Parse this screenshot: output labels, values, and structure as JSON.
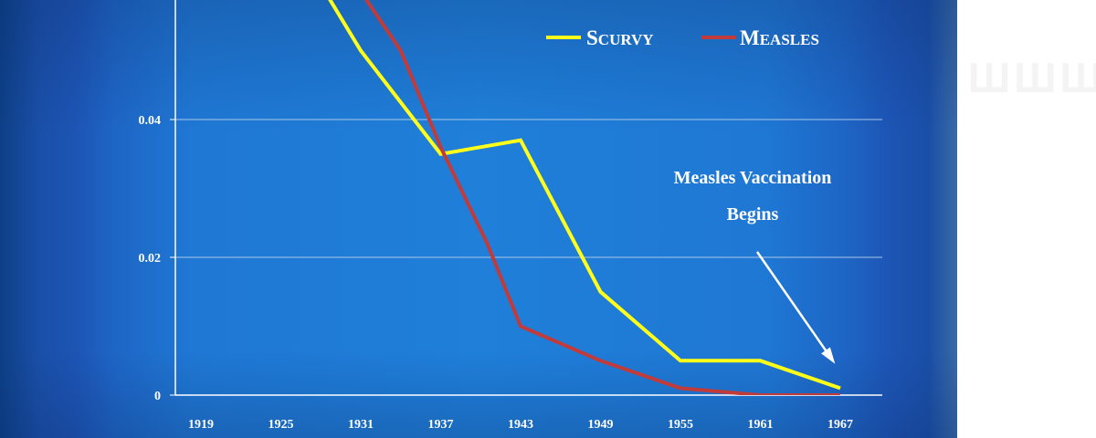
{
  "chart_data": {
    "type": "line",
    "title": "",
    "xlabel": "",
    "ylabel": "",
    "categories": [
      "1919",
      "1925",
      "1931",
      "1937",
      "1943",
      "1949",
      "1955",
      "1961",
      "1967"
    ],
    "y_ticks": [
      "0",
      "0.02",
      "0.04"
    ],
    "ylim": [
      0,
      0.057
    ],
    "grid": true,
    "legend_position": "top-right",
    "series": [
      {
        "name": "Scurvy",
        "legend_first": "S",
        "legend_rest": "CURVY",
        "color": "#ffff1a",
        "points": [
          [
            1928.5,
            0.058
          ],
          [
            1931,
            0.05
          ],
          [
            1937,
            0.035
          ],
          [
            1943,
            0.037
          ],
          [
            1949,
            0.015
          ],
          [
            1955,
            0.005
          ],
          [
            1961,
            0.005
          ],
          [
            1967,
            0.001
          ]
        ]
      },
      {
        "name": "Measles",
        "legend_first": "M",
        "legend_rest": "EASLES",
        "color": "#c23b3b",
        "points": [
          [
            1931.2,
            0.058
          ],
          [
            1934,
            0.05
          ],
          [
            1937,
            0.036
          ],
          [
            1940.5,
            0.022
          ],
          [
            1943,
            0.01
          ],
          [
            1949,
            0.005
          ],
          [
            1955,
            0.001
          ],
          [
            1961,
            0.0
          ],
          [
            1967,
            0.0
          ]
        ]
      }
    ],
    "annotation": {
      "lines": [
        "Measles Vaccination",
        "Begins"
      ],
      "target_x": 1967,
      "target_y": 0.001
    }
  },
  "side_text": "ШШШШ"
}
